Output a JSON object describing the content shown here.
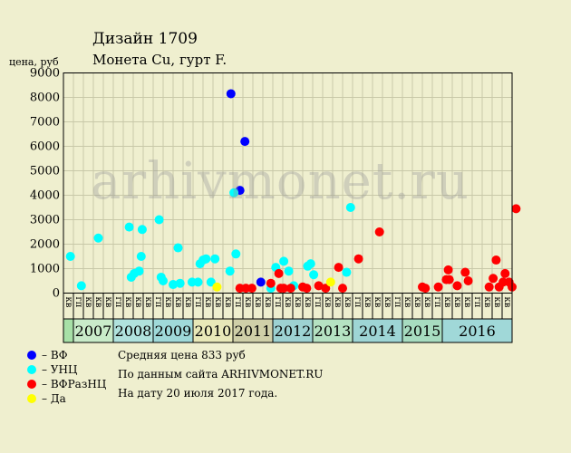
{
  "title": "Дизайн 1709",
  "subtitle": "Монета Cu, гурт F.",
  "watermark": "arhivmonet.ru",
  "notes": [
    "Средняя цена 833 руб",
    "По данным сайта ARHIVMONET.RU",
    "На дату 20 июля 2017 года."
  ],
  "legend": [
    {
      "label": "– ВФ",
      "color": "#0000ff"
    },
    {
      "label": "– УНЦ",
      "color": "#00ffff"
    },
    {
      "label": "– ВФРазНЦ",
      "color": "#ff0000"
    },
    {
      "label": "– Да",
      "color": "#ffff00"
    }
  ],
  "chart_data": {
    "type": "scatter",
    "ylabel": "цена, руб",
    "ylim": [
      0,
      9000
    ],
    "yticks": [
      0,
      1000,
      2000,
      3000,
      4000,
      5000,
      6000,
      7000,
      8000,
      9000
    ],
    "quarter_labels": [
      "кв",
      "гп",
      "кв",
      "кв"
    ],
    "years": [
      {
        "label": "",
        "color": "#a7e0a7"
      },
      {
        "label": "2007",
        "color": "#c9ebc9"
      },
      {
        "label": "2008",
        "color": "#b0e2dd"
      },
      {
        "label": "2009",
        "color": "#9fd9d9"
      },
      {
        "label": "2010",
        "color": "#e8e8b8"
      },
      {
        "label": "2011",
        "color": "#cfcfa8"
      },
      {
        "label": "2012",
        "color": "#9dd2d2"
      },
      {
        "label": "2013",
        "color": "#b5e2c2"
      },
      {
        "label": "2014",
        "color": "#9ed5d5"
      },
      {
        "label": "2015",
        "color": "#a7dcc0"
      },
      {
        "label": "2016",
        "color": "#a0d8d8"
      }
    ],
    "series": [
      {
        "color": "#0000ff",
        "points": [
          [
            16.3,
            8150
          ],
          [
            17.2,
            4200
          ],
          [
            17.7,
            6200
          ],
          [
            19.3,
            450
          ]
        ]
      },
      {
        "color": "#00ffff",
        "points": [
          [
            0.2,
            1500
          ],
          [
            1.3,
            300
          ],
          [
            3.0,
            2250
          ],
          [
            6.1,
            2700
          ],
          [
            6.3,
            650
          ],
          [
            6.6,
            800
          ],
          [
            7.1,
            900
          ],
          [
            7.3,
            1500
          ],
          [
            7.4,
            2600
          ],
          [
            9.1,
            3000
          ],
          [
            9.3,
            650
          ],
          [
            9.5,
            500
          ],
          [
            10.5,
            350
          ],
          [
            11.0,
            1850
          ],
          [
            11.2,
            400
          ],
          [
            12.4,
            450
          ],
          [
            13.0,
            450
          ],
          [
            13.2,
            1200
          ],
          [
            13.5,
            1350
          ],
          [
            13.8,
            1400
          ],
          [
            14.3,
            450
          ],
          [
            14.7,
            1400
          ],
          [
            16.2,
            900
          ],
          [
            16.6,
            4100
          ],
          [
            16.8,
            1600
          ],
          [
            20.3,
            200
          ],
          [
            20.8,
            1050
          ],
          [
            21.6,
            1300
          ],
          [
            22.1,
            900
          ],
          [
            22.6,
            300
          ],
          [
            24.0,
            1100
          ],
          [
            24.3,
            1200
          ],
          [
            24.6,
            750
          ],
          [
            27.9,
            850
          ],
          [
            28.3,
            3500
          ]
        ]
      },
      {
        "color": "#ff0000",
        "points": [
          [
            17.2,
            200
          ],
          [
            17.8,
            200
          ],
          [
            18.4,
            200
          ],
          [
            20.3,
            400
          ],
          [
            21.1,
            800
          ],
          [
            21.3,
            200
          ],
          [
            21.6,
            200
          ],
          [
            22.3,
            200
          ],
          [
            23.5,
            250
          ],
          [
            23.9,
            200
          ],
          [
            25.1,
            300
          ],
          [
            25.8,
            200
          ],
          [
            27.1,
            1050
          ],
          [
            27.5,
            200
          ],
          [
            29.1,
            1400
          ],
          [
            31.2,
            2500
          ],
          [
            35.5,
            250
          ],
          [
            35.8,
            200
          ],
          [
            37.1,
            250
          ],
          [
            37.9,
            550
          ],
          [
            38.1,
            950
          ],
          [
            39.0,
            300
          ],
          [
            38.2,
            550
          ],
          [
            39.8,
            850
          ],
          [
            40.1,
            500
          ],
          [
            42.2,
            250
          ],
          [
            42.6,
            600
          ],
          [
            42.9,
            1350
          ],
          [
            43.2,
            250
          ],
          [
            43.6,
            450
          ],
          [
            43.8,
            800
          ],
          [
            44.2,
            450
          ],
          [
            44.5,
            250
          ],
          [
            44.9,
            3450
          ]
        ]
      },
      {
        "color": "#ffff00",
        "points": [
          [
            14.9,
            250
          ],
          [
            26.3,
            450
          ]
        ]
      }
    ]
  }
}
